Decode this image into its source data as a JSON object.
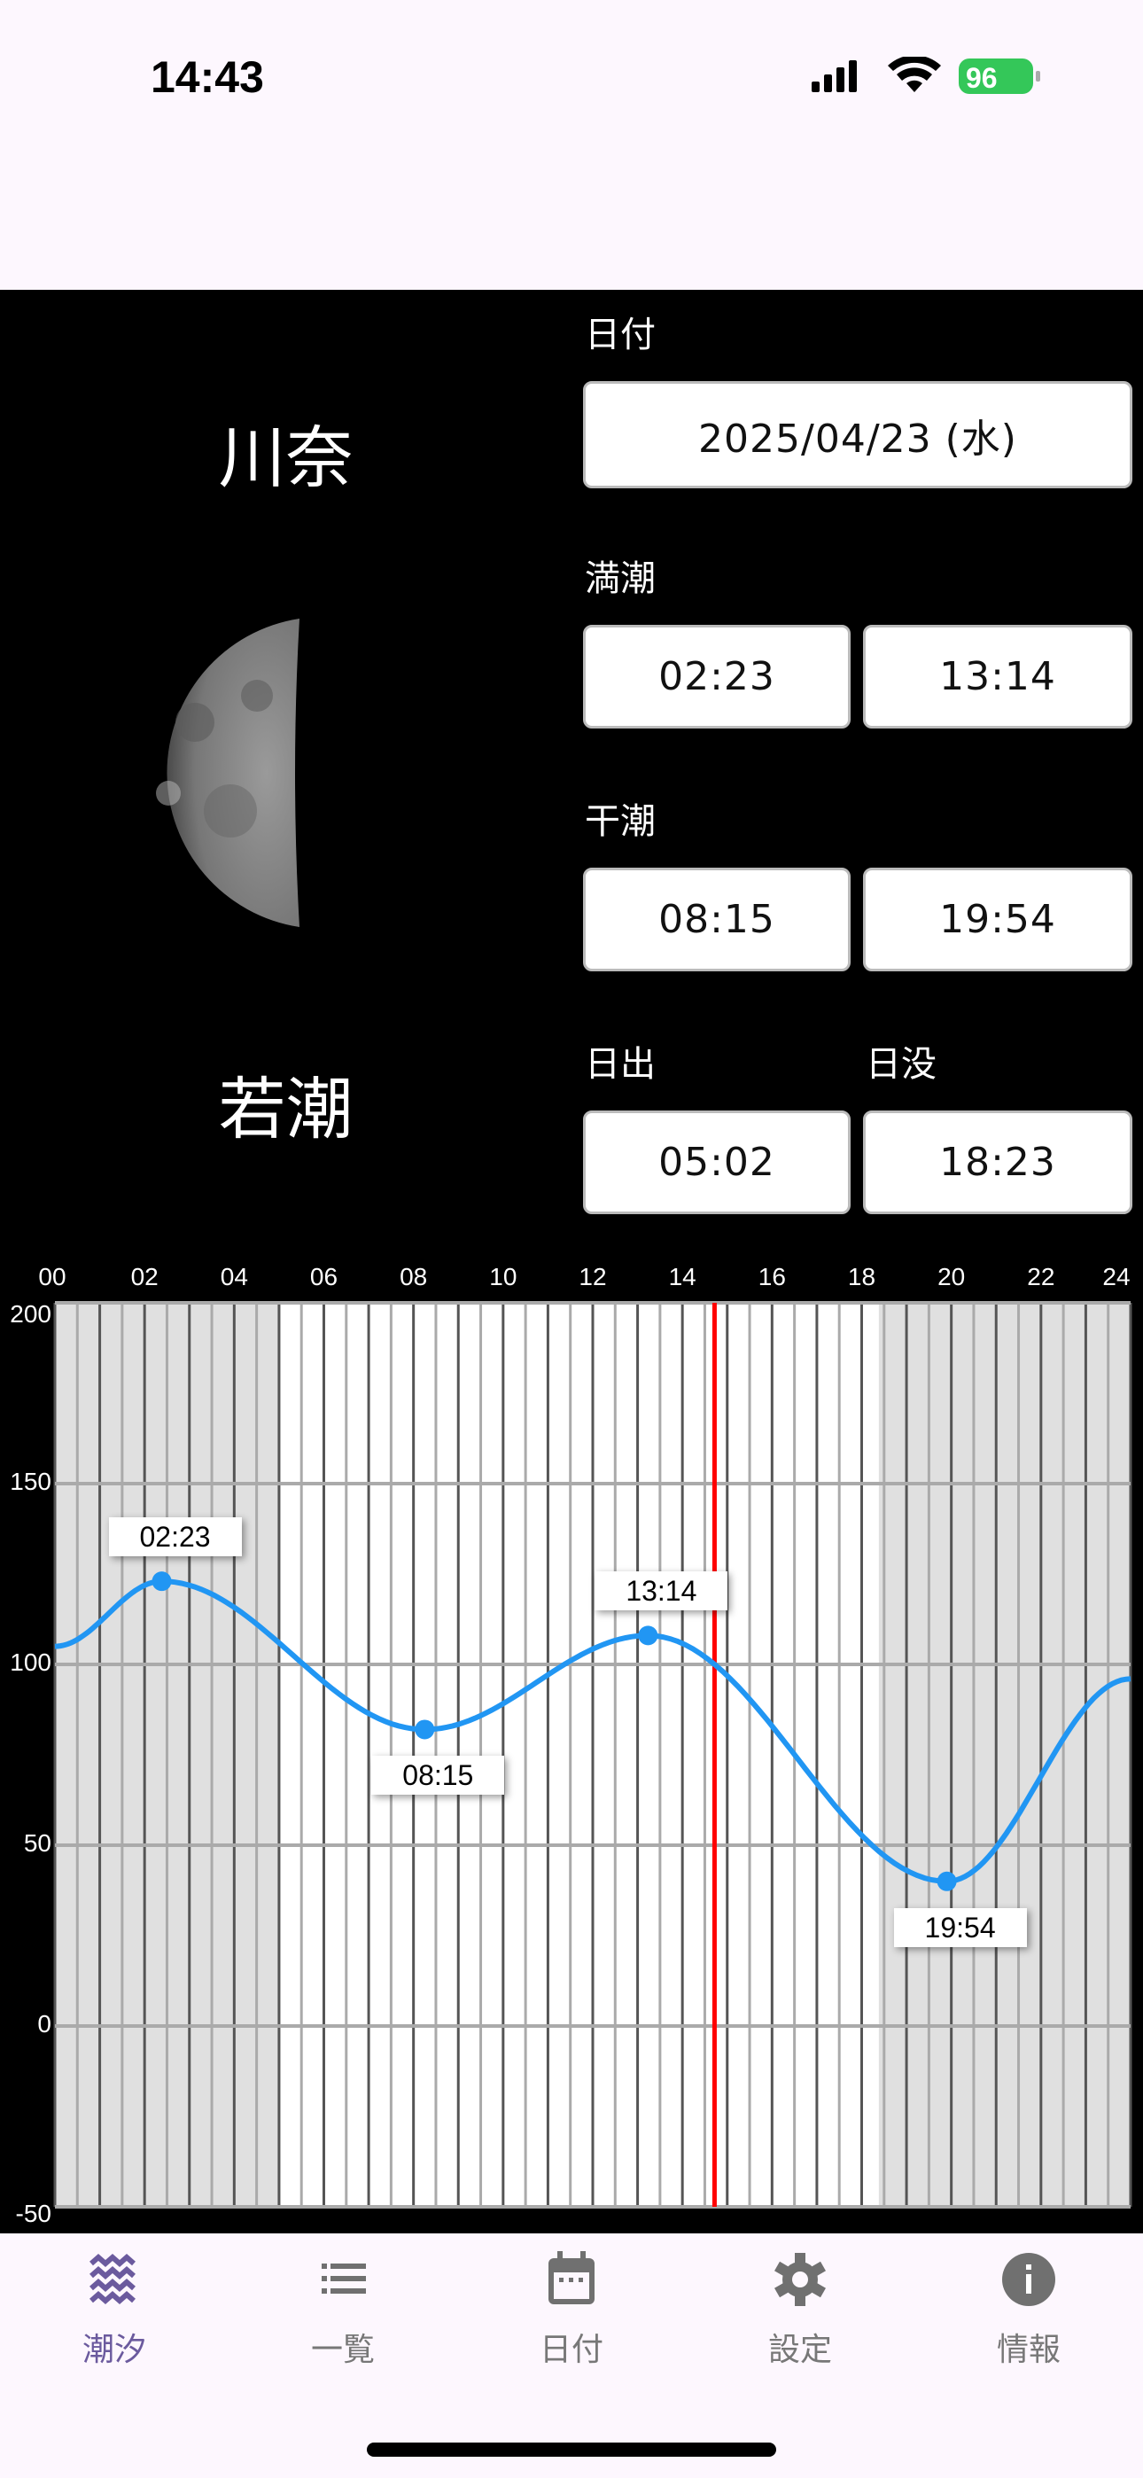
{
  "status": {
    "time": "14:43",
    "battery": "96"
  },
  "location": "川奈",
  "tide_name": "若潮",
  "date": {
    "label": "日付",
    "value": "2025/04/23 (水)"
  },
  "high_tide": {
    "label": "満潮",
    "times": [
      "02:23",
      "13:14"
    ]
  },
  "low_tide": {
    "label": "干潮",
    "times": [
      "08:15",
      "19:54"
    ]
  },
  "sunrise": {
    "label": "日出",
    "value": "05:02"
  },
  "sunset": {
    "label": "日没",
    "value": "18:23"
  },
  "chart_data": {
    "type": "line",
    "x_ticks": [
      "00",
      "02",
      "04",
      "06",
      "08",
      "10",
      "12",
      "14",
      "16",
      "18",
      "20",
      "22",
      "24"
    ],
    "y_ticks": [
      "200",
      "150",
      "100",
      "50",
      "0",
      "-50"
    ],
    "xlim": [
      0,
      24
    ],
    "ylim": [
      -50,
      200
    ],
    "series": [
      {
        "points": [
          [
            0,
            105
          ],
          [
            2.383,
            123
          ],
          [
            8.25,
            82
          ],
          [
            13.233,
            108
          ],
          [
            19.9,
            40
          ],
          [
            24,
            96
          ]
        ]
      }
    ],
    "labeled_points": [
      {
        "label": "02:23",
        "x": 2.383,
        "y": 123,
        "pos": "above"
      },
      {
        "label": "08:15",
        "x": 8.25,
        "y": 82,
        "pos": "below"
      },
      {
        "label": "13:14",
        "x": 13.233,
        "y": 108,
        "pos": "above"
      },
      {
        "label": "19:54",
        "x": 19.9,
        "y": 40,
        "pos": "below"
      }
    ],
    "night_before": 5.033,
    "night_after": 18.383,
    "current_time": 14.717,
    "colors": {
      "line": "#2196f3",
      "now": "#ff0000",
      "night": "#e0e0e0"
    }
  },
  "tabs": [
    {
      "label": "潮汐",
      "icon": "waves-icon",
      "active": true
    },
    {
      "label": "一覧",
      "icon": "list-icon"
    },
    {
      "label": "日付",
      "icon": "calendar-icon"
    },
    {
      "label": "設定",
      "icon": "gear-icon"
    },
    {
      "label": "情報",
      "icon": "info-icon"
    }
  ]
}
